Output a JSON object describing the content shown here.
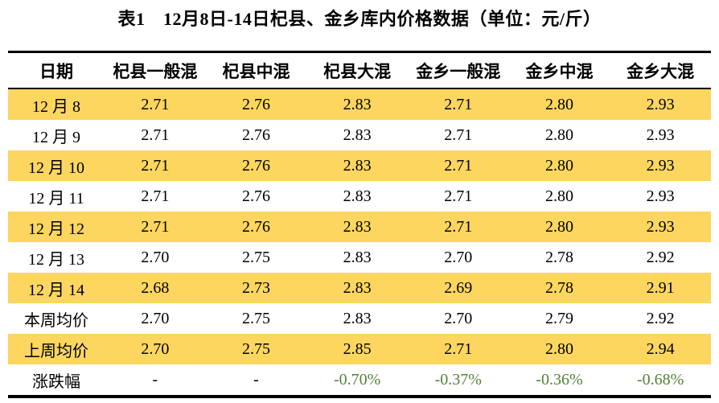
{
  "title": "表1　12月8日-14日杞县、金乡库内价格数据（单位：元/斤）",
  "table": {
    "columns": [
      "日期",
      "杞县一般混",
      "杞县中混",
      "杞县大混",
      "金乡一般混",
      "金乡中混",
      "金乡大混"
    ],
    "rows": [
      {
        "label": "12 月 8",
        "values": [
          "2.71",
          "2.76",
          "2.83",
          "2.71",
          "2.80",
          "2.93"
        ],
        "highlight": true
      },
      {
        "label": "12 月 9",
        "values": [
          "2.71",
          "2.76",
          "2.83",
          "2.71",
          "2.80",
          "2.93"
        ],
        "highlight": false
      },
      {
        "label": "12 月 10",
        "values": [
          "2.71",
          "2.76",
          "2.83",
          "2.71",
          "2.80",
          "2.93"
        ],
        "highlight": true
      },
      {
        "label": "12 月 11",
        "values": [
          "2.71",
          "2.76",
          "2.83",
          "2.71",
          "2.80",
          "2.93"
        ],
        "highlight": false
      },
      {
        "label": "12 月 12",
        "values": [
          "2.71",
          "2.76",
          "2.83",
          "2.71",
          "2.80",
          "2.93"
        ],
        "highlight": true
      },
      {
        "label": "12 月 13",
        "values": [
          "2.70",
          "2.75",
          "2.83",
          "2.70",
          "2.78",
          "2.92"
        ],
        "highlight": false
      },
      {
        "label": "12 月 14",
        "values": [
          "2.68",
          "2.73",
          "2.83",
          "2.69",
          "2.78",
          "2.91"
        ],
        "highlight": true
      },
      {
        "label": "本周均价",
        "values": [
          "2.70",
          "2.75",
          "2.83",
          "2.70",
          "2.79",
          "2.92"
        ],
        "highlight": false
      },
      {
        "label": "上周均价",
        "values": [
          "2.70",
          "2.75",
          "2.85",
          "2.71",
          "2.80",
          "2.94"
        ],
        "highlight": true
      },
      {
        "label": "涨跌幅",
        "values": [
          "-",
          "-",
          "-0.70%",
          "-0.37%",
          "-0.36%",
          "-0.68%"
        ],
        "highlight": false
      }
    ],
    "colors": {
      "stripe": "#FCD65E",
      "negative": "#538135"
    }
  }
}
